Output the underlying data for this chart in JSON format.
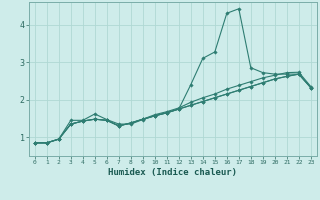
{
  "xlabel": "Humidex (Indice chaleur)",
  "ylabel": "",
  "background_color": "#ceecea",
  "line_color": "#2e7d72",
  "grid_color": "#b0d8d4",
  "x_values": [
    0,
    1,
    2,
    3,
    4,
    5,
    6,
    7,
    8,
    9,
    10,
    11,
    12,
    13,
    14,
    15,
    16,
    17,
    18,
    19,
    20,
    21,
    22,
    23
  ],
  "series": [
    [
      0.85,
      0.85,
      0.95,
      1.45,
      1.45,
      1.62,
      1.47,
      1.35,
      1.35,
      1.47,
      1.57,
      1.65,
      1.75,
      2.4,
      3.1,
      3.27,
      4.3,
      4.42,
      2.85,
      2.72,
      2.68,
      2.68,
      2.68,
      2.32
    ],
    [
      0.85,
      0.85,
      0.95,
      1.35,
      1.43,
      1.48,
      1.45,
      1.3,
      1.38,
      1.48,
      1.57,
      1.65,
      1.75,
      1.85,
      1.95,
      2.05,
      2.15,
      2.25,
      2.35,
      2.45,
      2.55,
      2.62,
      2.68,
      2.32
    ],
    [
      0.85,
      0.85,
      0.95,
      1.35,
      1.43,
      1.48,
      1.45,
      1.3,
      1.38,
      1.48,
      1.57,
      1.65,
      1.75,
      1.85,
      1.95,
      2.05,
      2.15,
      2.25,
      2.35,
      2.45,
      2.55,
      2.62,
      2.68,
      2.32
    ],
    [
      0.85,
      0.85,
      0.95,
      1.35,
      1.43,
      1.48,
      1.45,
      1.3,
      1.38,
      1.48,
      1.6,
      1.68,
      1.78,
      1.93,
      2.05,
      2.15,
      2.28,
      2.38,
      2.48,
      2.58,
      2.65,
      2.72,
      2.73,
      2.35
    ]
  ],
  "ylim": [
    0.5,
    4.6
  ],
  "xlim": [
    -0.5,
    23.5
  ],
  "yticks": [
    1,
    2,
    3,
    4
  ],
  "xticks": [
    0,
    1,
    2,
    3,
    4,
    5,
    6,
    7,
    8,
    9,
    10,
    11,
    12,
    13,
    14,
    15,
    16,
    17,
    18,
    19,
    20,
    21,
    22,
    23
  ]
}
